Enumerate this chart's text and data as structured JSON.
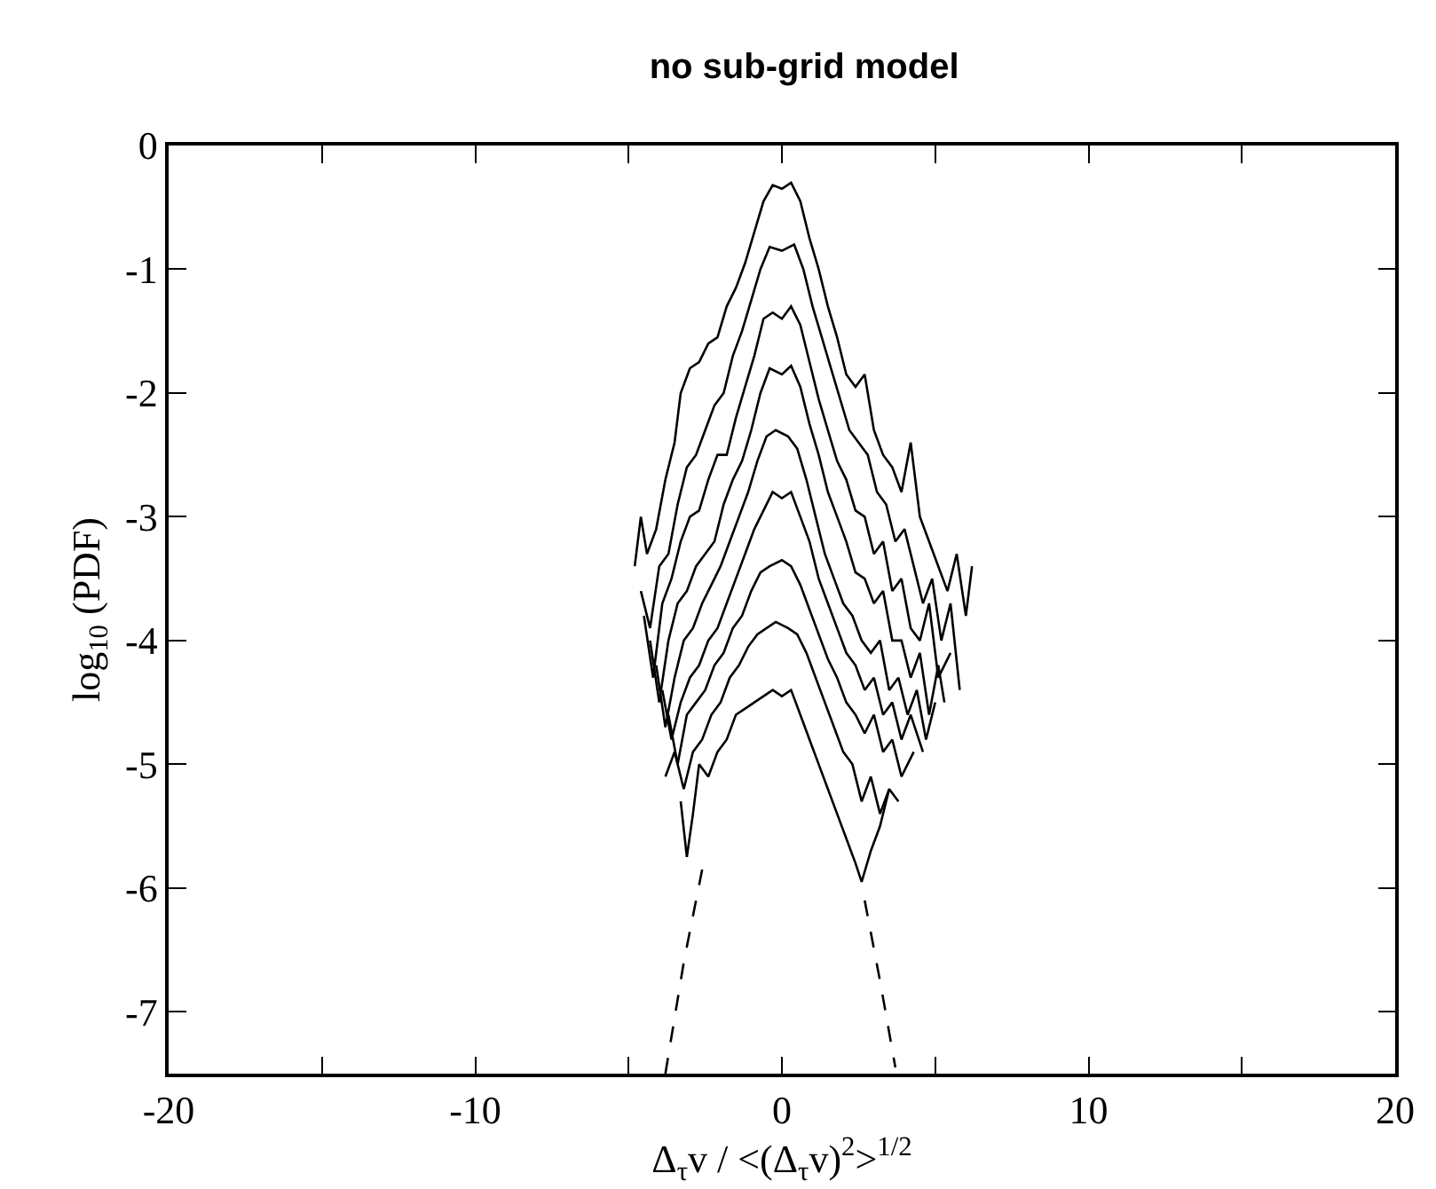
{
  "chart_data": {
    "type": "line",
    "title": "no sub-grid model",
    "xlabel": "Δ$_{τ}$v / <(Δ$_{τ}$v)$^{2}$>$^{1/2}$",
    "ylabel": "log$_{10}$ (PDF)",
    "xlim": [
      -20,
      20
    ],
    "ylim": [
      -7.5,
      0
    ],
    "xticks": [
      -20,
      {
        "value": -15,
        "label": null
      },
      -10,
      {
        "value": -5,
        "label": null
      },
      0,
      {
        "value": 5,
        "label": null
      },
      10,
      {
        "value": 15,
        "label": null
      },
      20
    ],
    "yticks": [
      -7,
      -6,
      -5,
      -4,
      -3,
      -2,
      -1,
      0
    ],
    "marker": "none",
    "line_style": "solid",
    "series": [
      {
        "color": "#000000",
        "x": [
          -4.8,
          -4.6,
          -4.4,
          -4.1,
          -3.8,
          -3.5,
          -3.3,
          -3.0,
          -2.7,
          -2.4,
          -2.1,
          -1.8,
          -1.5,
          -1.2,
          -0.9,
          -0.6,
          -0.3,
          0,
          0.3,
          0.6,
          0.9,
          1.2,
          1.5,
          1.8,
          2.1,
          2.4,
          2.7,
          3.0,
          3.3,
          3.6,
          3.9,
          4.2,
          4.5,
          4.8,
          5.1,
          5.4,
          5.7,
          6.0,
          6.2
        ],
        "values": [
          -3.4,
          -3.0,
          -3.3,
          -3.1,
          -2.7,
          -2.4,
          -2.0,
          -1.8,
          -1.75,
          -1.6,
          -1.55,
          -1.3,
          -1.15,
          -0.95,
          -0.7,
          -0.45,
          -0.32,
          -0.35,
          -0.3,
          -0.45,
          -0.75,
          -1.0,
          -1.3,
          -1.55,
          -1.85,
          -1.95,
          -1.85,
          -2.3,
          -2.5,
          -2.6,
          -2.8,
          -2.4,
          -3.0,
          -3.2,
          -3.4,
          -3.6,
          -3.3,
          -3.8,
          -3.4
        ]
      },
      {
        "color": "#000000",
        "x": [
          -4.6,
          -4.3,
          -4.0,
          -3.7,
          -3.4,
          -3.1,
          -2.8,
          -2.5,
          -2.2,
          -1.9,
          -1.6,
          -1.3,
          -1.0,
          -0.7,
          -0.4,
          0,
          0.4,
          0.7,
          1.0,
          1.3,
          1.6,
          1.9,
          2.2,
          2.5,
          2.8,
          3.1,
          3.4,
          3.7,
          4.0,
          4.3,
          4.6,
          4.9,
          5.2,
          5.5,
          5.8
        ],
        "values": [
          -3.6,
          -3.9,
          -3.4,
          -3.3,
          -2.9,
          -2.6,
          -2.5,
          -2.3,
          -2.1,
          -2.0,
          -1.7,
          -1.5,
          -1.25,
          -1.0,
          -0.82,
          -0.85,
          -0.8,
          -1.0,
          -1.3,
          -1.55,
          -1.8,
          -2.05,
          -2.3,
          -2.4,
          -2.5,
          -2.8,
          -2.9,
          -3.2,
          -3.1,
          -3.4,
          -3.7,
          -3.5,
          -4.0,
          -3.7,
          -4.4
        ]
      },
      {
        "color": "#000000",
        "x": [
          -4.5,
          -4.2,
          -3.9,
          -3.6,
          -3.3,
          -3.0,
          -2.7,
          -2.4,
          -2.1,
          -1.8,
          -1.5,
          -1.2,
          -0.9,
          -0.6,
          -0.3,
          0,
          0.3,
          0.6,
          0.9,
          1.2,
          1.5,
          1.8,
          2.1,
          2.4,
          2.7,
          3.0,
          3.3,
          3.6,
          3.9,
          4.2,
          4.5,
          4.8,
          5.1,
          5.5
        ],
        "values": [
          -3.8,
          -4.3,
          -3.7,
          -3.5,
          -3.2,
          -3.0,
          -2.95,
          -2.7,
          -2.5,
          -2.5,
          -2.2,
          -1.95,
          -1.7,
          -1.4,
          -1.35,
          -1.4,
          -1.3,
          -1.45,
          -1.75,
          -2.05,
          -2.3,
          -2.55,
          -2.7,
          -2.95,
          -3.0,
          -3.3,
          -3.2,
          -3.6,
          -3.5,
          -3.9,
          -4.0,
          -3.7,
          -4.3,
          -4.1
        ]
      },
      {
        "color": "#000000",
        "x": [
          -4.3,
          -4.0,
          -3.7,
          -3.4,
          -3.1,
          -2.8,
          -2.5,
          -2.2,
          -1.9,
          -1.6,
          -1.3,
          -1.0,
          -0.7,
          -0.4,
          0,
          0.3,
          0.6,
          0.9,
          1.2,
          1.5,
          1.8,
          2.1,
          2.4,
          2.7,
          3.0,
          3.3,
          3.6,
          3.9,
          4.2,
          4.5,
          4.8,
          5.1,
          5.3
        ],
        "values": [
          -4.0,
          -4.5,
          -4.0,
          -3.7,
          -3.6,
          -3.4,
          -3.3,
          -3.2,
          -2.9,
          -2.7,
          -2.55,
          -2.3,
          -2.0,
          -1.8,
          -1.85,
          -1.78,
          -1.95,
          -2.25,
          -2.5,
          -2.8,
          -3.0,
          -3.2,
          -3.45,
          -3.5,
          -3.7,
          -3.6,
          -4.0,
          -4.0,
          -4.3,
          -4.1,
          -4.6,
          -4.2,
          -4.5
        ]
      },
      {
        "color": "#000000",
        "x": [
          -4.1,
          -3.8,
          -3.5,
          -3.2,
          -2.9,
          -2.6,
          -2.3,
          -2.0,
          -1.7,
          -1.4,
          -1.1,
          -0.8,
          -0.5,
          -0.2,
          0.2,
          0.5,
          0.8,
          1.1,
          1.4,
          1.7,
          2.0,
          2.3,
          2.6,
          2.9,
          3.2,
          3.5,
          3.8,
          4.1,
          4.4,
          4.7,
          5.0
        ],
        "values": [
          -4.2,
          -4.7,
          -4.3,
          -4.0,
          -3.9,
          -3.7,
          -3.55,
          -3.4,
          -3.2,
          -3.0,
          -2.8,
          -2.55,
          -2.35,
          -2.3,
          -2.35,
          -2.45,
          -2.7,
          -3.0,
          -3.3,
          -3.5,
          -3.7,
          -3.8,
          -4.0,
          -4.1,
          -4.0,
          -4.4,
          -4.3,
          -4.6,
          -4.4,
          -4.8,
          -4.5
        ]
      },
      {
        "color": "#000000",
        "x": [
          -3.9,
          -3.6,
          -3.3,
          -3.0,
          -2.7,
          -2.4,
          -2.1,
          -1.8,
          -1.5,
          -1.2,
          -0.9,
          -0.6,
          -0.3,
          0,
          0.3,
          0.6,
          0.9,
          1.2,
          1.5,
          1.8,
          2.1,
          2.4,
          2.7,
          3.0,
          3.3,
          3.6,
          3.9,
          4.2,
          4.6
        ],
        "values": [
          -4.4,
          -4.8,
          -4.5,
          -4.3,
          -4.2,
          -4.0,
          -3.9,
          -3.7,
          -3.5,
          -3.3,
          -3.1,
          -2.95,
          -2.8,
          -2.85,
          -2.8,
          -3.0,
          -3.2,
          -3.5,
          -3.7,
          -3.9,
          -4.1,
          -4.2,
          -4.4,
          -4.3,
          -4.6,
          -4.5,
          -4.8,
          -4.6,
          -4.9
        ]
      },
      {
        "color": "#000000",
        "x": [
          -3.7,
          -3.4,
          -3.1,
          -2.8,
          -2.5,
          -2.2,
          -1.9,
          -1.6,
          -1.3,
          -1.0,
          -0.7,
          -0.4,
          0,
          0.3,
          0.6,
          0.9,
          1.2,
          1.5,
          1.8,
          2.1,
          2.4,
          2.7,
          3.0,
          3.3,
          3.6,
          3.9,
          4.3
        ],
        "values": [
          -4.6,
          -5.0,
          -4.6,
          -4.5,
          -4.4,
          -4.2,
          -4.1,
          -3.9,
          -3.8,
          -3.6,
          -3.45,
          -3.4,
          -3.35,
          -3.4,
          -3.55,
          -3.75,
          -3.95,
          -4.15,
          -4.3,
          -4.5,
          -4.6,
          -4.75,
          -4.6,
          -4.9,
          -4.8,
          -5.1,
          -4.9
        ]
      },
      {
        "color": "#000000",
        "x": [
          -3.8,
          -3.5,
          -3.2,
          -2.9,
          -2.6,
          -2.3,
          -2.0,
          -1.7,
          -1.4,
          -1.1,
          -0.8,
          -0.5,
          -0.2,
          0.2,
          0.5,
          0.8,
          1.1,
          1.4,
          1.7,
          2.0,
          2.3,
          2.6,
          2.9,
          3.2,
          3.5,
          3.8
        ],
        "values": [
          -5.1,
          -4.9,
          -5.2,
          -4.9,
          -4.8,
          -4.6,
          -4.5,
          -4.3,
          -4.2,
          -4.05,
          -3.95,
          -3.9,
          -3.85,
          -3.9,
          -3.95,
          -4.1,
          -4.3,
          -4.5,
          -4.7,
          -4.9,
          -5.0,
          -5.3,
          -5.1,
          -5.4,
          -5.2,
          -5.3
        ]
      },
      {
        "color": "#000000",
        "x": [
          -3.3,
          -3.1,
          -2.9,
          -2.7,
          -2.4,
          -2.1,
          -1.8,
          -1.5,
          -1.2,
          -0.9,
          -0.6,
          -0.3,
          0,
          0.3,
          0.6,
          0.9,
          1.2,
          1.5,
          1.8,
          2.1,
          2.4,
          2.6,
          2.9,
          3.2,
          3.5
        ],
        "values": [
          -5.3,
          -5.75,
          -5.4,
          -5.0,
          -5.1,
          -4.9,
          -4.8,
          -4.6,
          -4.55,
          -4.5,
          -4.45,
          -4.4,
          -4.45,
          -4.4,
          -4.6,
          -4.8,
          -5.0,
          -5.2,
          -5.4,
          -5.6,
          -5.8,
          -5.95,
          -5.7,
          -5.5,
          -5.2
        ]
      },
      {
        "color": "#000000",
        "line_style": "dashed",
        "x": [
          -3.8,
          -3.2,
          -2.6,
          null,
          2.7,
          3.2,
          3.7
        ],
        "values": [
          -7.5,
          -6.6,
          -5.85,
          null,
          -6.1,
          -6.75,
          -7.45
        ]
      }
    ]
  }
}
